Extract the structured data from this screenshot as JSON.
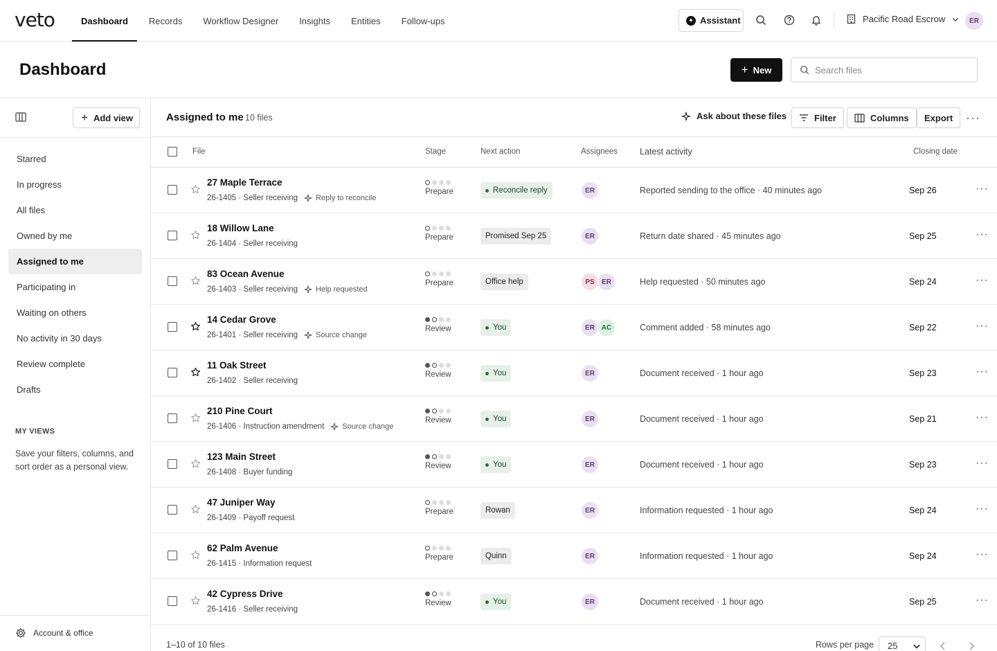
{
  "app": {
    "logo": "veto"
  },
  "nav": {
    "tabs": [
      {
        "label": "Dashboard",
        "active": true
      },
      {
        "label": "Records",
        "active": false
      },
      {
        "label": "Workflow Designer",
        "active": false
      },
      {
        "label": "Insights",
        "active": false
      },
      {
        "label": "Entities",
        "active": false
      },
      {
        "label": "Follow-ups",
        "active": false
      }
    ],
    "assistant_label": "Assistant",
    "org_name": "Pacific Road Escrow",
    "user_initials": "ER"
  },
  "header": {
    "title": "Dashboard",
    "new_label": "New",
    "search_placeholder": "Search files"
  },
  "sidebar": {
    "add_view_label": "Add view",
    "items": [
      {
        "label": "Starred",
        "active": false
      },
      {
        "label": "In progress",
        "active": false
      },
      {
        "label": "All files",
        "active": false
      },
      {
        "label": "Owned by me",
        "active": false
      },
      {
        "label": "Assigned to me",
        "active": true
      },
      {
        "label": "Participating in",
        "active": false
      },
      {
        "label": "Waiting on others",
        "active": false
      },
      {
        "label": "No activity in 30 days",
        "active": false
      },
      {
        "label": "Review complete",
        "active": false
      },
      {
        "label": "Drafts",
        "active": false
      }
    ],
    "my_views_label": "MY VIEWS",
    "my_views_desc": "Save your filters, columns, and sort order as a personal view.",
    "account_label": "Account & office"
  },
  "toolbar": {
    "title": "Assigned to me",
    "count": "10 files",
    "ask_label": "Ask about these files",
    "filter_label": "Filter",
    "columns_label": "Columns",
    "export_label": "Export"
  },
  "table": {
    "columns": {
      "file": "File",
      "stage": "Stage",
      "next_action": "Next action",
      "assignees": "Assignees",
      "latest_activity": "Latest activity",
      "closing_date": "Closing date"
    },
    "rows": [
      {
        "name": "27 Maple Terrace",
        "meta": "26-1405 · Seller receiving",
        "tag": "Reply to reconcile",
        "starred": false,
        "stage": "Prepare",
        "stage_step": 1,
        "action": "Reconcile reply",
        "action_style": "green",
        "assignees": [
          "ER"
        ],
        "latest": "Reported sending to the office · 40 minutes ago",
        "closing": "Sep 26"
      },
      {
        "name": "18 Willow Lane",
        "meta": "26-1404 · Seller receiving",
        "tag": "",
        "starred": false,
        "stage": "Prepare",
        "stage_step": 1,
        "action": "Promised Sep 25",
        "action_style": "gray",
        "assignees": [
          "ER"
        ],
        "latest": "Return date shared · 45 minutes ago",
        "closing": "Sep 25"
      },
      {
        "name": "83 Ocean Avenue",
        "meta": "26-1403 · Seller receiving",
        "tag": "Help requested",
        "starred": false,
        "stage": "Prepare",
        "stage_step": 1,
        "action": "Office help",
        "action_style": "gray",
        "assignees": [
          "PS",
          "ER"
        ],
        "latest": "Help requested · 50 minutes ago",
        "closing": "Sep 24"
      },
      {
        "name": "14 Cedar Grove",
        "meta": "26-1401 · Seller receiving",
        "tag": "Source change",
        "starred": true,
        "stage": "Review",
        "stage_step": 2,
        "action": "You",
        "action_style": "green",
        "assignees": [
          "ER",
          "AC"
        ],
        "latest": "Comment added · 58 minutes ago",
        "closing": "Sep 22"
      },
      {
        "name": "11 Oak Street",
        "meta": "26-1402 · Seller receiving",
        "tag": "",
        "starred": true,
        "stage": "Review",
        "stage_step": 2,
        "action": "You",
        "action_style": "green",
        "assignees": [
          "ER"
        ],
        "latest": "Document received · 1 hour ago",
        "closing": "Sep 23"
      },
      {
        "name": "210 Pine Court",
        "meta": "26-1406 · Instruction amendment",
        "tag": "Source change",
        "starred": false,
        "stage": "Review",
        "stage_step": 2,
        "action": "You",
        "action_style": "green",
        "assignees": [
          "ER"
        ],
        "latest": "Document received · 1 hour ago",
        "closing": "Sep 21"
      },
      {
        "name": "123 Main Street",
        "meta": "26-1408 · Buyer funding",
        "tag": "",
        "starred": false,
        "stage": "Review",
        "stage_step": 2,
        "action": "You",
        "action_style": "green",
        "assignees": [
          "ER"
        ],
        "latest": "Document received · 1 hour ago",
        "closing": "Sep 23"
      },
      {
        "name": "47 Juniper Way",
        "meta": "26-1409 · Payoff request",
        "tag": "",
        "starred": false,
        "stage": "Prepare",
        "stage_step": 1,
        "action": "Rowan",
        "action_style": "gray",
        "assignees": [
          "ER"
        ],
        "latest": "Information requested · 1 hour ago",
        "closing": "Sep 24"
      },
      {
        "name": "62 Palm Avenue",
        "meta": "26-1415 · Information request",
        "tag": "",
        "starred": false,
        "stage": "Prepare",
        "stage_step": 1,
        "action": "Quinn",
        "action_style": "gray",
        "assignees": [
          "ER"
        ],
        "latest": "Information requested · 1 hour ago",
        "closing": "Sep 24"
      },
      {
        "name": "42 Cypress Drive",
        "meta": "26-1416 · Seller receiving",
        "tag": "",
        "starred": false,
        "stage": "Review",
        "stage_step": 2,
        "action": "You",
        "action_style": "green",
        "assignees": [
          "ER"
        ],
        "latest": "Document received · 1 hour ago",
        "closing": "Sep 25"
      }
    ]
  },
  "footer": {
    "range": "1–10 of 10 files",
    "rows_per_page_label": "Rows per page",
    "rows_per_page": "25"
  }
}
